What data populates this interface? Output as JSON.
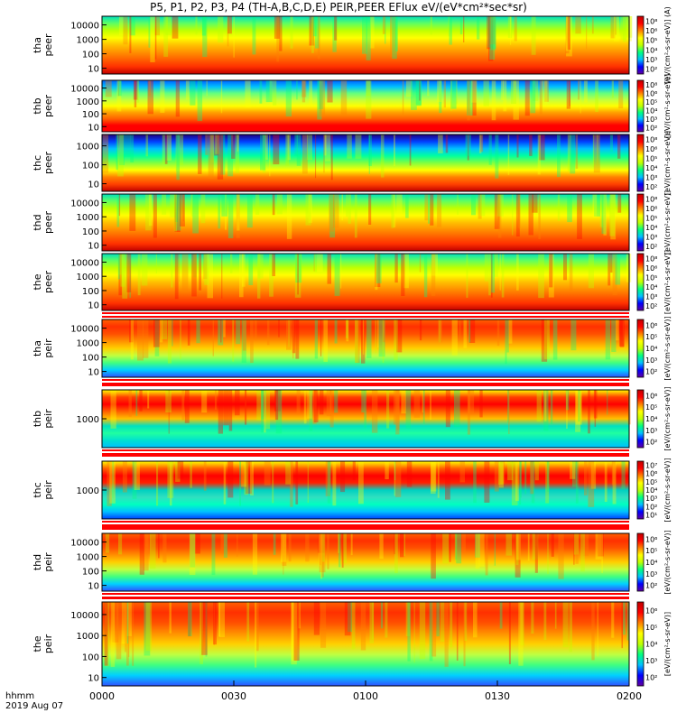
{
  "title": "P5, P1, P2, P3, P4 (TH-A,B,C,D,E) PEIR,PEER EFlux eV/(eV*cm²*sec*sr)",
  "footer": {
    "time_label": "hhmm",
    "date_label": "2019 Aug 07"
  },
  "chart_data": {
    "type": "heatmap",
    "x_ticks": [
      "0000",
      "0030",
      "0100",
      "0130",
      "0200"
    ],
    "x_range_minutes": [
      0,
      120
    ],
    "colorbar_label": "[eV/(cm²-s-sr-eV)]",
    "colormap": [
      "#6000a0",
      "#0000ff",
      "#00c0ff",
      "#00ff80",
      "#c0ff00",
      "#ffff00",
      "#ff8000",
      "#ff0000",
      "#c00000"
    ],
    "panels": [
      {
        "probe": "tha",
        "instrument": "peer",
        "ylabel": "tha\npeer",
        "y_ticks": [
          "10",
          "100",
          "1000",
          "10000"
        ],
        "cbar_ticks": [
          "10²",
          "10³",
          "10⁴",
          "10⁵",
          "10⁶",
          "10⁸"
        ],
        "colorbar_label": "[eV/(cm²-s-sr-eV)] (A)"
      },
      {
        "probe": "thb",
        "instrument": "peer",
        "ylabel": "thb\npeer",
        "y_ticks": [
          "10",
          "100",
          "1000",
          "10000"
        ],
        "cbar_ticks": [
          "10²",
          "10³",
          "10⁴",
          "10⁵",
          "10⁶",
          "10⁸"
        ],
        "colorbar_label": "[eV/(cm²-s-sr-eV)]"
      },
      {
        "probe": "thc",
        "instrument": "peer",
        "ylabel": "thc\npeer",
        "y_ticks": [
          "10",
          "100",
          "1000"
        ],
        "cbar_ticks": [
          "10²",
          "10³",
          "10⁴",
          "10⁵",
          "10⁶",
          "10⁸"
        ],
        "colorbar_label": "[eV/(cm²-s-sr-eV)]"
      },
      {
        "probe": "thd",
        "instrument": "peer",
        "ylabel": "thd\npeer",
        "y_ticks": [
          "10",
          "100",
          "1000",
          "10000"
        ],
        "cbar_ticks": [
          "10²",
          "10³",
          "10⁴",
          "10⁵",
          "10⁶",
          "10⁸"
        ],
        "colorbar_label": "[eV/(cm²-s-sr-eV)]"
      },
      {
        "probe": "the",
        "instrument": "peer",
        "ylabel": "the\npeer",
        "y_ticks": [
          "10",
          "100",
          "1000",
          "10000"
        ],
        "cbar_ticks": [
          "10²",
          "10³",
          "10⁴",
          "10⁵",
          "10⁶",
          "10⁸"
        ],
        "colorbar_label": "[eV/(cm²-s-sr-eV)]"
      },
      {
        "probe": "tha",
        "instrument": "peir",
        "ylabel": "tha\npeir",
        "y_ticks": [
          "10",
          "100",
          "1000",
          "10000"
        ],
        "cbar_ticks": [
          "10²",
          "10³",
          "10⁴",
          "10⁵",
          "10⁶"
        ],
        "colorbar_label": "[eV/(cm²-s-sr-eV)]"
      },
      {
        "probe": "thb",
        "instrument": "peir",
        "ylabel": "thb\npeir",
        "y_ticks": [
          "1000"
        ],
        "cbar_ticks": [
          "10²",
          "10³",
          "10⁴",
          "10⁵",
          "10⁶"
        ],
        "colorbar_label": "[eV/(cm²-s-sr-eV)]"
      },
      {
        "probe": "thc",
        "instrument": "peir",
        "ylabel": "thc\npeir",
        "y_ticks": [
          "1000"
        ],
        "cbar_ticks": [
          "10¹",
          "10²",
          "10³",
          "10⁴",
          "10⁵",
          "10⁶",
          "10⁷"
        ],
        "colorbar_label": "[eV/(cm²-s-sr-eV)]"
      },
      {
        "probe": "thd",
        "instrument": "peir",
        "ylabel": "thd\npeir",
        "y_ticks": [
          "10",
          "100",
          "1000",
          "10000"
        ],
        "cbar_ticks": [
          "10²",
          "10³",
          "10⁴",
          "10⁵",
          "10⁶"
        ],
        "colorbar_label": "[eV/(cm²-s-sr-eV)]"
      },
      {
        "probe": "the",
        "instrument": "peir",
        "ylabel": "the\npeir",
        "y_ticks": [
          "10",
          "100",
          "1000",
          "10000"
        ],
        "cbar_ticks": [
          "10²",
          "10³",
          "10⁴",
          "10⁵",
          "10⁶"
        ],
        "colorbar_label": "[eV/(cm²-s-sr-eV)]"
      }
    ]
  }
}
